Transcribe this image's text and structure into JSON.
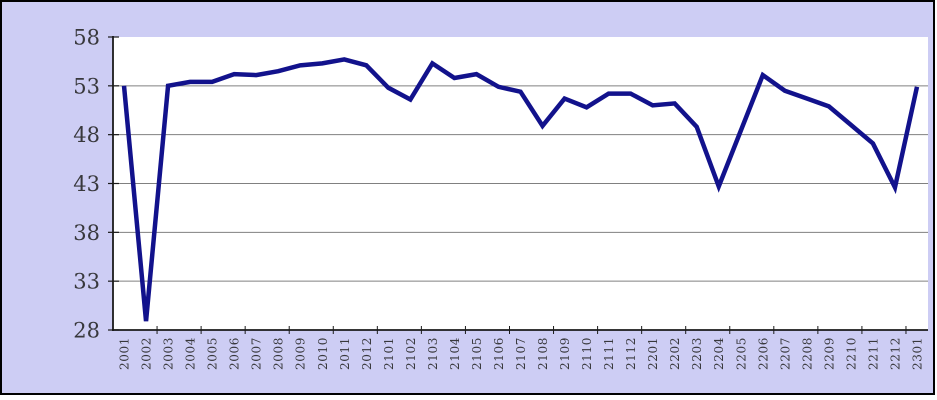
{
  "chart_data": {
    "type": "line",
    "title": "",
    "xlabel": "",
    "ylabel": "",
    "categories": [
      "2001",
      "2002",
      "2003",
      "2004",
      "2005",
      "2006",
      "2007",
      "2008",
      "2009",
      "2010",
      "2011",
      "2012",
      "2101",
      "2102",
      "2103",
      "2104",
      "2105",
      "2106",
      "2107",
      "2108",
      "2109",
      "2110",
      "2111",
      "2112",
      "2201",
      "2202",
      "2203",
      "2204",
      "2205",
      "2206",
      "2207",
      "2208",
      "2209",
      "2210",
      "2211",
      "2212",
      "2301"
    ],
    "series": [
      {
        "name": "",
        "values": [
          53.0,
          28.9,
          53.0,
          53.4,
          53.4,
          54.2,
          54.1,
          54.5,
          55.1,
          55.3,
          55.7,
          55.1,
          52.8,
          51.6,
          55.3,
          53.8,
          54.2,
          52.9,
          52.4,
          48.9,
          51.7,
          50.8,
          52.2,
          52.2,
          51.0,
          51.2,
          48.8,
          42.7,
          48.4,
          54.1,
          52.5,
          51.7,
          50.9,
          49.0,
          47.1,
          42.6,
          52.9
        ]
      }
    ],
    "ylim": [
      28,
      58
    ],
    "yticks": [
      28,
      33,
      38,
      43,
      48,
      53,
      58
    ],
    "ytick_labels": [
      "28",
      "33",
      "38",
      "43",
      "48",
      "53",
      "58"
    ],
    "grid": "horizontal",
    "legend_position": "none",
    "x_tick_label_rotation": -90,
    "x_tick_mark_every": 2,
    "colors": {
      "line": "#12128c",
      "chart_background": "#cdcdf4",
      "plot_background": "#ffffff",
      "gridline": "#808080",
      "axis": "#1a1a1a",
      "label": "#38383c",
      "frame_border": "#000000"
    }
  }
}
